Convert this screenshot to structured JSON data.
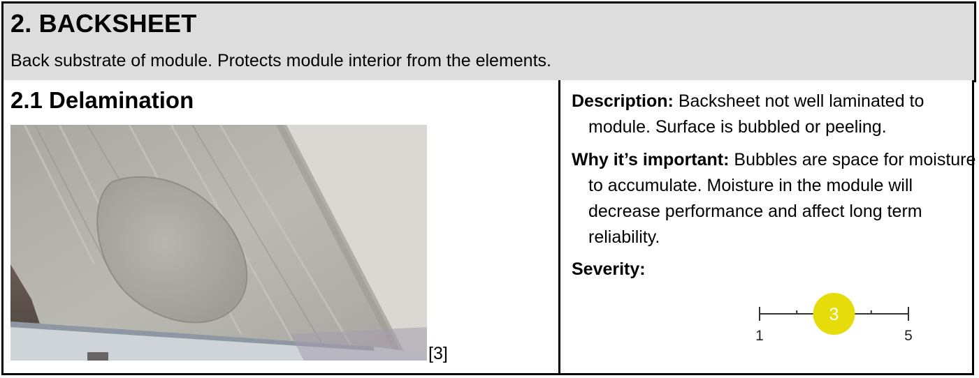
{
  "header": {
    "title": "2. BACKSHEET",
    "subtitle": "Back substrate of module. Protects module interior from the elements."
  },
  "defect": {
    "title": "2.1 Delamination",
    "reference": "[3]",
    "description_label": "Description:",
    "description_text": "Backsheet not well laminated to module. Surface is bubbled or peeling.",
    "importance_label": "Why it’s important:",
    "importance_text": "Bubbles are space for moisture to accumulate. Moisture in the module will decrease performance and affect long term reliability.",
    "severity_label": "Severity:",
    "severity": {
      "min": "1",
      "max": "5",
      "value": 3,
      "value_label": "3"
    }
  },
  "colors": {
    "header_bg": "#dddddd",
    "severity_marker": "#e6dc0a"
  }
}
